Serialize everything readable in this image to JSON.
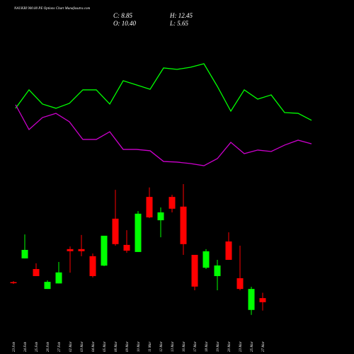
{
  "chart_data": {
    "type": "candlestick",
    "title": "NAUKRI 900.00 PE Options Chart Munafasutra.com",
    "ohlc_labels": [
      "C: 8.85",
      "H: 12.45",
      "O: 10.40",
      "L: 5.65"
    ],
    "categories": [
      "23 Feb",
      "24 Feb",
      "25 Feb",
      "26 Feb",
      "27 Feb",
      "02 Mar",
      "03 Mar",
      "04 Mar",
      "05 Mar",
      "06 Mar",
      "09 Mar",
      "10 Mar",
      "11 Mar",
      "12 Mar",
      "13 Mar",
      "16 Mar",
      "17 Mar",
      "18 Mar",
      "19 Mar",
      "20 Mar",
      "23 Mar",
      "25 Mar",
      "27 Mar"
    ],
    "open": [
      16.5,
      25.55,
      21.5,
      13.9,
      16.0,
      29.1,
      29.1,
      26.4,
      22.8,
      40.7,
      30.7,
      28.0,
      49.0,
      40.1,
      49.0,
      45.3,
      26.9,
      22.0,
      18.8,
      32.0,
      18.0,
      5.9,
      10.4
    ],
    "high": [
      16.9,
      34.7,
      23.7,
      17.2,
      24.2,
      30.1,
      34.5,
      27.4,
      34.2,
      51.7,
      36.3,
      43.6,
      52.6,
      45.0,
      49.8,
      53.9,
      26.9,
      29.1,
      25.0,
      35.5,
      30.4,
      14.75,
      12.45
    ],
    "low": [
      15.8,
      25.5,
      18.8,
      13.9,
      16.0,
      20.1,
      26.4,
      18.3,
      22.6,
      30.4,
      27.7,
      28.0,
      40.9,
      33.6,
      43.1,
      26.9,
      13.4,
      21.5,
      13.4,
      25.0,
      13.4,
      4.0,
      5.65
    ],
    "close": [
      16.2,
      28.8,
      18.8,
      16.6,
      20.2,
      28.3,
      28.3,
      18.8,
      34.2,
      31.0,
      28.5,
      42.6,
      41.2,
      43.1,
      44.5,
      31.0,
      14.8,
      28.25,
      22.85,
      25.0,
      13.9,
      13.9,
      8.85
    ],
    "up_color": "#00ff00",
    "down_color": "#ff0000",
    "ylim": [
      0,
      60
    ],
    "y2lim": [
      0,
      100
    ],
    "series": [
      {
        "color": "#00ff00",
        "axis": "y2",
        "values": [
          57.1,
          72.4,
          60.6,
          57.1,
          61.2,
          72.4,
          72.4,
          60.6,
          80,
          76.5,
          72.9,
          90.6,
          89.4,
          91.2,
          94.1,
          75.3,
          54.7,
          72.4,
          64.7,
          68.2,
          53.5,
          52.9,
          47.1
        ]
      },
      {
        "color": "#cc00cc",
        "axis": "y2",
        "values": [
          60,
          39.4,
          49.4,
          52.9,
          45.9,
          31.2,
          31.2,
          37.6,
          22.9,
          22.9,
          21.8,
          12.9,
          12.4,
          11.2,
          9.4,
          15.3,
          28.8,
          19.4,
          22.4,
          21.2,
          26.5,
          30.6,
          27.6
        ]
      }
    ]
  }
}
